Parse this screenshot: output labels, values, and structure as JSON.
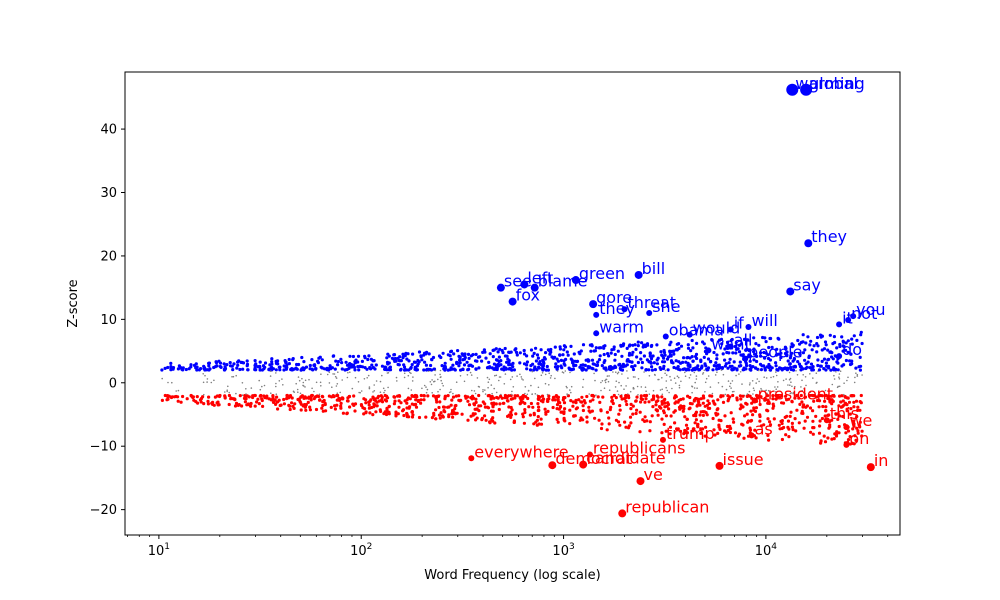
{
  "chart_data": {
    "type": "scatter",
    "xlabel": "Word Frequency (log scale)",
    "ylabel": "Z-score",
    "xscale": "log",
    "xlim": [
      6.8,
      46000
    ],
    "ylim": [
      -24,
      49
    ],
    "x_ticks": [
      {
        "value": 10,
        "base": "10",
        "exp": "1"
      },
      {
        "value": 100,
        "base": "10",
        "exp": "2"
      },
      {
        "value": 1000,
        "base": "10",
        "exp": "3"
      },
      {
        "value": 10000,
        "base": "10",
        "exp": "4"
      }
    ],
    "y_ticks": [
      -20,
      -10,
      0,
      10,
      20,
      30,
      40
    ],
    "grid": false,
    "colors": {
      "positive": "#0000ff",
      "negative": "#ff0000",
      "neutral": "#808080"
    },
    "background_cloud": {
      "x_range": [
        10,
        30000
      ],
      "positive_band": {
        "y_min": 2,
        "y_max_at_left": 3,
        "y_max_at_right": 8,
        "color": "#0000ff"
      },
      "negative_band": {
        "y_max": -2,
        "y_min_at_left": -3,
        "y_min_at_right": -10,
        "color": "#ff0000"
      },
      "neutral_band": {
        "y_min": -2,
        "y_max": 2,
        "color": "#808080"
      }
    },
    "labeled_points": [
      {
        "word": "warming",
        "x": 13500,
        "y": 46.2,
        "group": "positive"
      },
      {
        "word": "global",
        "x": 15800,
        "y": 46.2,
        "group": "positive"
      },
      {
        "word": "they",
        "x": 16200,
        "y": 22.0,
        "group": "positive"
      },
      {
        "word": "say",
        "x": 13200,
        "y": 14.4,
        "group": "positive"
      },
      {
        "word": "you",
        "x": 27000,
        "y": 10.5,
        "group": "positive"
      },
      {
        "word": "not",
        "x": 25500,
        "y": 9.9,
        "group": "positive"
      },
      {
        "word": "it",
        "x": 23000,
        "y": 9.2,
        "group": "positive"
      },
      {
        "word": "will",
        "x": 8200,
        "y": 8.8,
        "group": "positive"
      },
      {
        "word": "if",
        "x": 6700,
        "y": 8.4,
        "group": "positive"
      },
      {
        "word": "do",
        "x": 23000,
        "y": 4.2,
        "group": "positive"
      },
      {
        "word": "people",
        "x": 7900,
        "y": 3.8,
        "group": "positive"
      },
      {
        "word": "bill",
        "x": 2350,
        "y": 17.0,
        "group": "positive"
      },
      {
        "word": "green",
        "x": 1150,
        "y": 16.2,
        "group": "positive"
      },
      {
        "word": "left",
        "x": 640,
        "y": 15.5,
        "group": "positive"
      },
      {
        "word": "see",
        "x": 490,
        "y": 15.0,
        "group": "positive"
      },
      {
        "word": "blame",
        "x": 720,
        "y": 15.0,
        "group": "positive"
      },
      {
        "word": "fox",
        "x": 560,
        "y": 12.8,
        "group": "positive"
      },
      {
        "word": "gore",
        "x": 1400,
        "y": 12.4,
        "group": "positive"
      },
      {
        "word": "threat",
        "x": 2000,
        "y": 11.6,
        "group": "positive"
      },
      {
        "word": "she",
        "x": 2650,
        "y": 11.0,
        "group": "positive"
      },
      {
        "word": "they",
        "x": 1450,
        "y": 10.7,
        "group": "positive"
      },
      {
        "word": "warm",
        "x": 1450,
        "y": 7.8,
        "group": "positive"
      },
      {
        "word": "obama",
        "x": 3200,
        "y": 7.3,
        "group": "positive"
      },
      {
        "word": "would",
        "x": 4200,
        "y": 7.6,
        "group": "positive"
      },
      {
        "word": "all",
        "x": 6700,
        "y": 5.7,
        "group": "positive"
      },
      {
        "word": "want",
        "x": 5200,
        "y": 5.1,
        "group": "positive"
      },
      {
        "word": "republican",
        "x": 1950,
        "y": -20.6,
        "group": "negative"
      },
      {
        "word": "ve",
        "x": 2400,
        "y": -15.5,
        "group": "negative"
      },
      {
        "word": "in",
        "x": 33000,
        "y": -13.3,
        "group": "negative"
      },
      {
        "word": "issue",
        "x": 5900,
        "y": -13.1,
        "group": "negative"
      },
      {
        "word": "democrat",
        "x": 880,
        "y": -13.0,
        "group": "negative"
      },
      {
        "word": "candidate",
        "x": 1250,
        "y": -12.9,
        "group": "negative"
      },
      {
        "word": "everywhere",
        "x": 350,
        "y": -11.9,
        "group": "negative"
      },
      {
        "word": "republicans",
        "x": 1350,
        "y": -11.3,
        "group": "negative"
      },
      {
        "word": "on",
        "x": 25000,
        "y": -9.8,
        "group": "negative"
      },
      {
        "word": "trump",
        "x": 3100,
        "y": -9.0,
        "group": "negative"
      },
      {
        "word": "as",
        "x": 8500,
        "y": -8.3,
        "group": "negative"
      },
      {
        "word": "we",
        "x": 25000,
        "y": -7.0,
        "group": "negative"
      },
      {
        "word": "this",
        "x": 20000,
        "y": -5.9,
        "group": "negative"
      },
      {
        "word": "president",
        "x": 8800,
        "y": -2.8,
        "group": "negative"
      }
    ]
  }
}
